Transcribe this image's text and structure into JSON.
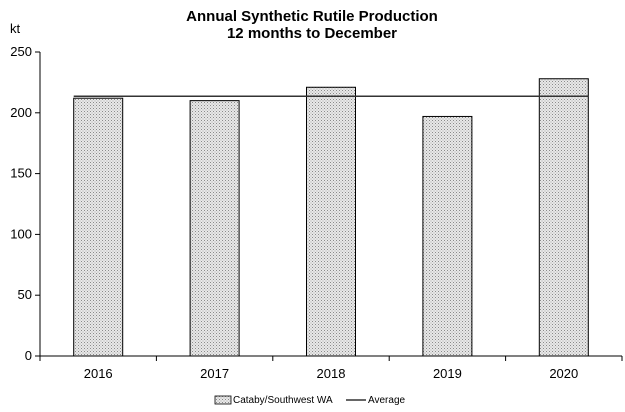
{
  "chart_data": {
    "type": "bar",
    "title": "Annual Synthetic Rutile Production",
    "subtitle": "12 months to December",
    "ylabel": "kt",
    "xlabel": "",
    "categories": [
      "2016",
      "2017",
      "2018",
      "2019",
      "2020"
    ],
    "series": [
      {
        "name": "Cataby/Southwest WA",
        "type": "bar",
        "values": [
          212,
          210,
          221,
          197,
          228
        ]
      },
      {
        "name": "Average",
        "type": "line",
        "values": [
          213.6,
          213.6,
          213.6,
          213.6,
          213.6
        ]
      }
    ],
    "ylim": [
      0,
      250
    ],
    "yticks": [
      "0",
      "50",
      "100",
      "150",
      "200",
      "250"
    ],
    "grid": false,
    "legend_position": "bottom-center"
  }
}
